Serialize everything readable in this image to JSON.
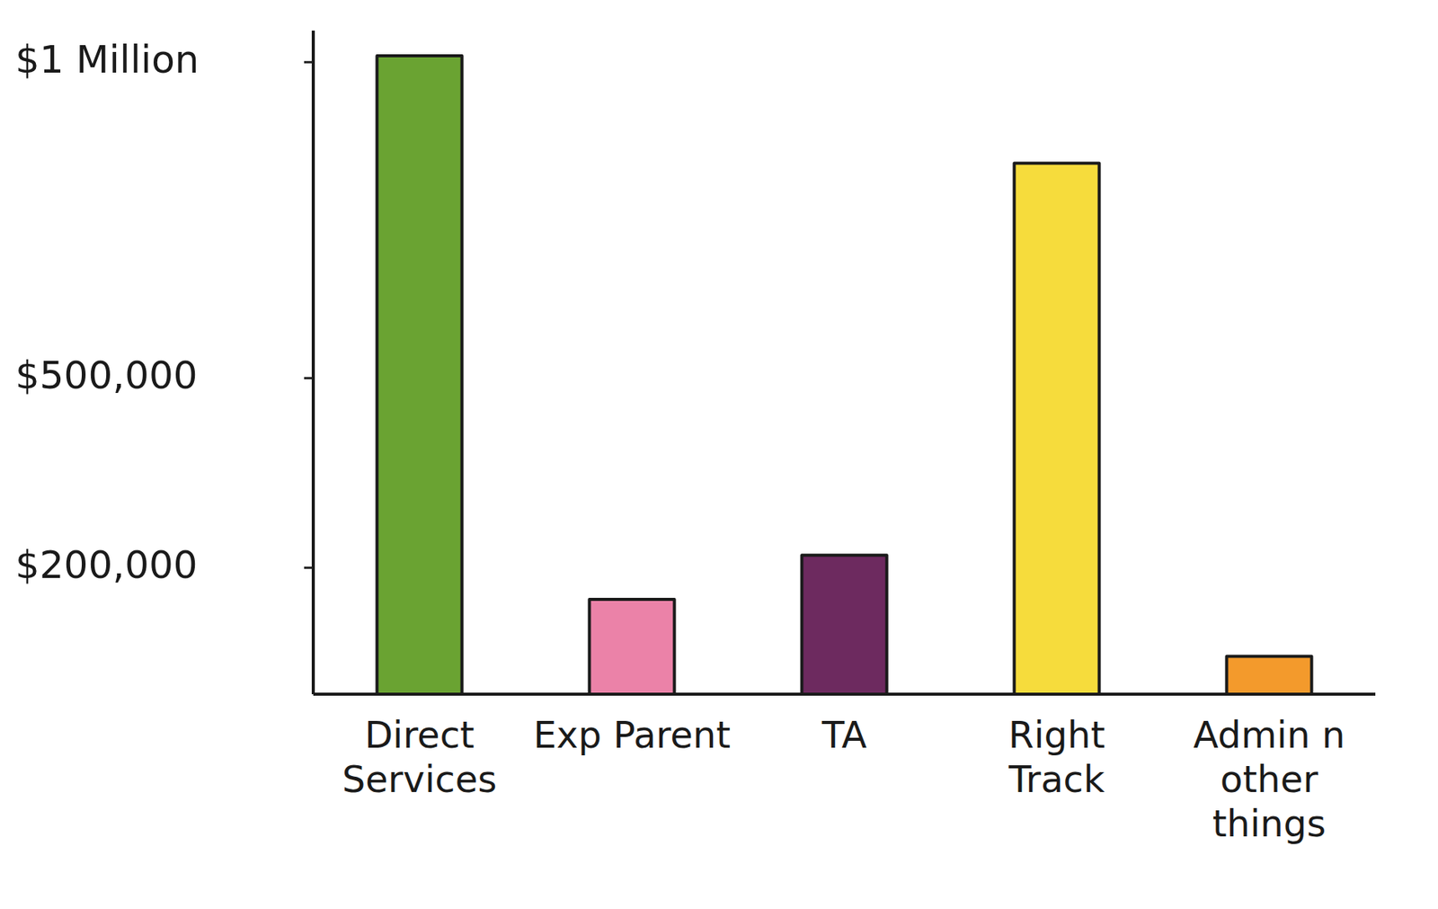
{
  "chart_data": {
    "type": "bar",
    "categories": [
      "Direct Services",
      "Exp Parent",
      "TA",
      "Right Track",
      "Admin n other things"
    ],
    "values": [
      1010000,
      150000,
      220000,
      840000,
      60000
    ],
    "colors": [
      "#6aa332",
      "#eb82a8",
      "#6d2a5f",
      "#f6dc3c",
      "#f39a2c"
    ],
    "ylim": [
      0,
      1050000
    ],
    "yticks": [
      {
        "value": 200000,
        "label": "$200,000"
      },
      {
        "value": 500000,
        "label": "$500,000"
      },
      {
        "value": 1000000,
        "label": "$1 Million"
      }
    ],
    "grid": false
  }
}
